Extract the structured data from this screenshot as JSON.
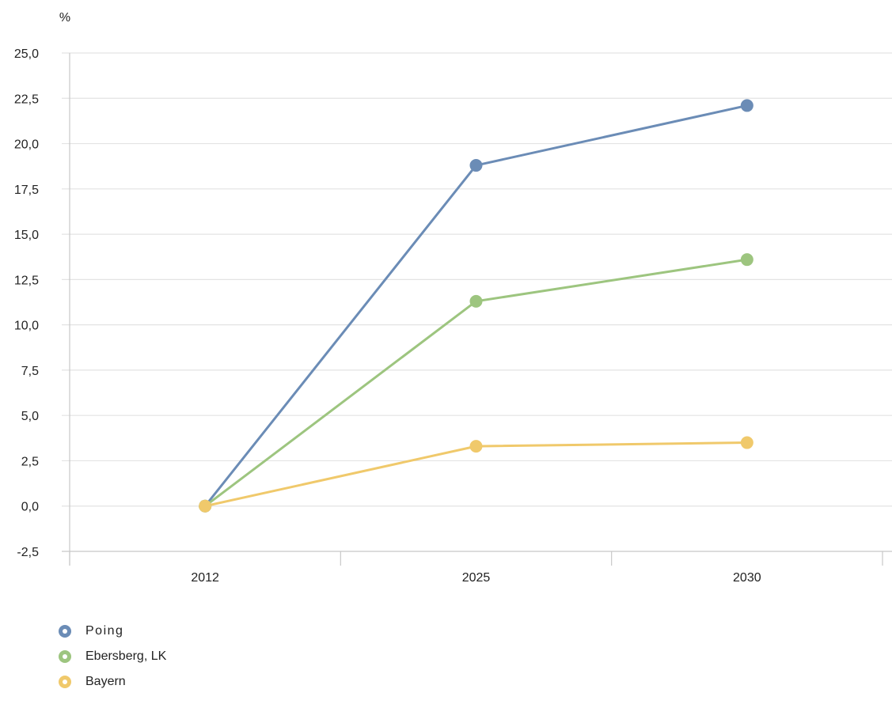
{
  "chart_data": {
    "type": "line",
    "unit_label": "%",
    "categories": [
      "2012",
      "2025",
      "2030"
    ],
    "ylim": [
      -2.5,
      25.0
    ],
    "yticks": [
      "-2,5",
      "0,0",
      "2,5",
      "5,0",
      "7,5",
      "10,0",
      "12,5",
      "15,0",
      "17,5",
      "20,0",
      "22,5",
      "25,0"
    ],
    "grid": true,
    "legend_position": "bottom-left",
    "series": [
      {
        "name": "Poing",
        "color": "#6b8cb6",
        "values": [
          0.0,
          18.8,
          22.1
        ]
      },
      {
        "name": "Ebersberg, LK",
        "color": "#9dc57f",
        "values": [
          0.0,
          11.3,
          13.6
        ]
      },
      {
        "name": "Bayern",
        "color": "#f0c96b",
        "values": [
          0.0,
          3.3,
          3.5
        ]
      }
    ]
  }
}
